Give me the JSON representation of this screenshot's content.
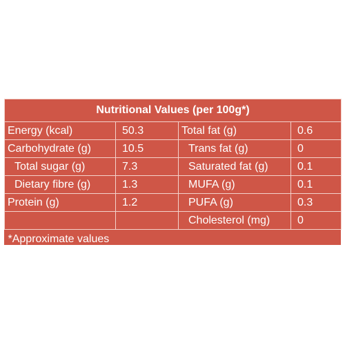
{
  "title": "Nutritional Values (per 100g*)",
  "left": [
    {
      "label": "Energy (kcal)",
      "value": "50.3"
    },
    {
      "label": "Carbohydrate (g)",
      "value": "10.5"
    },
    {
      "label": "Total sugar (g)",
      "value": "7.3"
    },
    {
      "label": "Dietary fibre (g)",
      "value": "1.3"
    },
    {
      "label": "Protein (g)",
      "value": "1.2"
    }
  ],
  "right": [
    {
      "label": "Total fat (g)",
      "value": "0.6"
    },
    {
      "label": "Trans fat (g)",
      "value": "0"
    },
    {
      "label": "Saturated fat (g)",
      "value": "0.1"
    },
    {
      "label": "MUFA (g)",
      "value": "0.1"
    },
    {
      "label": "PUFA (g)",
      "value": "0.3"
    },
    {
      "label": "Cholesterol (mg)",
      "value": "0"
    }
  ],
  "footnote": "*Approximate values",
  "colors": {
    "panel": "#cf5647",
    "text": "#ffffff",
    "border": "#f4d3cc"
  }
}
